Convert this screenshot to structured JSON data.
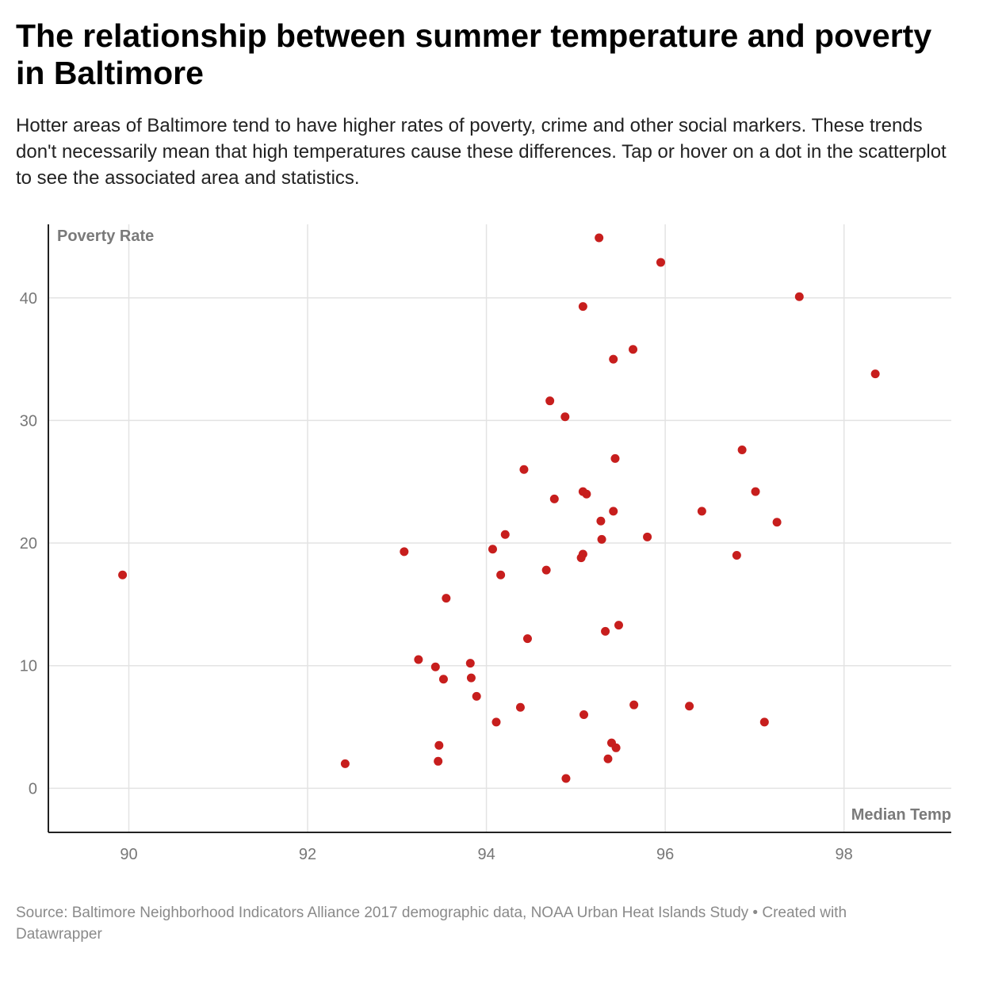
{
  "header": {
    "title": "The relationship between summer temperature and poverty in Baltimore",
    "subtitle": "Hotter areas of Baltimore tend to have higher rates of poverty, crime and other social markers. These trends don't necessarily mean that high temperatures cause these differences. Tap or hover on a dot in the scatterplot to see the associated area and statistics."
  },
  "footer": {
    "source": "Source: Baltimore Neighborhood Indicators Alliance 2017 demographic data, NOAA Urban Heat Islands Study • Created with Datawrapper"
  },
  "colors": {
    "dot": "#c71e1d",
    "grid": "#e3e3e3",
    "axis": "#222222",
    "tick_text": "#777777"
  },
  "chart_data": {
    "type": "scatter",
    "title": "The relationship between summer temperature and poverty in Baltimore",
    "xlabel": "Median Temp",
    "ylabel": "Poverty Rate",
    "xlim": [
      89.1,
      99.2
    ],
    "ylim": [
      -3.6,
      46
    ],
    "x_ticks": [
      90,
      92,
      94,
      96,
      98
    ],
    "x_tick_labels": [
      "90",
      "92",
      "94",
      "96",
      "98"
    ],
    "y_ticks": [
      0,
      10,
      20,
      30,
      40
    ],
    "y_tick_labels": [
      "0",
      "10",
      "20",
      "30",
      "40"
    ],
    "grid": true,
    "series": [
      {
        "points": [
          [
            89.93,
            17.4
          ],
          [
            92.42,
            2.0
          ],
          [
            93.08,
            19.3
          ],
          [
            93.24,
            10.5
          ],
          [
            93.43,
            9.9
          ],
          [
            93.46,
            2.2
          ],
          [
            93.47,
            3.5
          ],
          [
            93.52,
            8.9
          ],
          [
            93.55,
            15.5
          ],
          [
            93.82,
            10.2
          ],
          [
            93.83,
            9.0
          ],
          [
            93.89,
            7.5
          ],
          [
            94.07,
            19.5
          ],
          [
            94.11,
            5.4
          ],
          [
            94.16,
            17.4
          ],
          [
            94.21,
            20.7
          ],
          [
            94.38,
            6.6
          ],
          [
            94.42,
            26.0
          ],
          [
            94.46,
            12.2
          ],
          [
            94.67,
            17.8
          ],
          [
            94.71,
            31.6
          ],
          [
            94.76,
            23.6
          ],
          [
            94.88,
            30.3
          ],
          [
            94.89,
            0.8
          ],
          [
            95.06,
            18.8
          ],
          [
            95.08,
            19.1
          ],
          [
            95.08,
            39.3
          ],
          [
            95.08,
            24.2
          ],
          [
            95.09,
            6.0
          ],
          [
            95.12,
            24.0
          ],
          [
            95.26,
            44.9
          ],
          [
            95.28,
            21.8
          ],
          [
            95.29,
            20.3
          ],
          [
            95.33,
            12.8
          ],
          [
            95.36,
            2.4
          ],
          [
            95.4,
            3.7
          ],
          [
            95.42,
            22.6
          ],
          [
            95.42,
            35.0
          ],
          [
            95.44,
            26.9
          ],
          [
            95.45,
            3.3
          ],
          [
            95.48,
            13.3
          ],
          [
            95.64,
            35.8
          ],
          [
            95.65,
            6.8
          ],
          [
            95.8,
            20.5
          ],
          [
            95.95,
            42.9
          ],
          [
            96.27,
            6.7
          ],
          [
            96.41,
            22.6
          ],
          [
            96.8,
            19.0
          ],
          [
            96.86,
            27.6
          ],
          [
            97.01,
            24.2
          ],
          [
            97.11,
            5.4
          ],
          [
            97.25,
            21.7
          ],
          [
            97.5,
            40.1
          ],
          [
            98.35,
            33.8
          ]
        ]
      }
    ]
  }
}
